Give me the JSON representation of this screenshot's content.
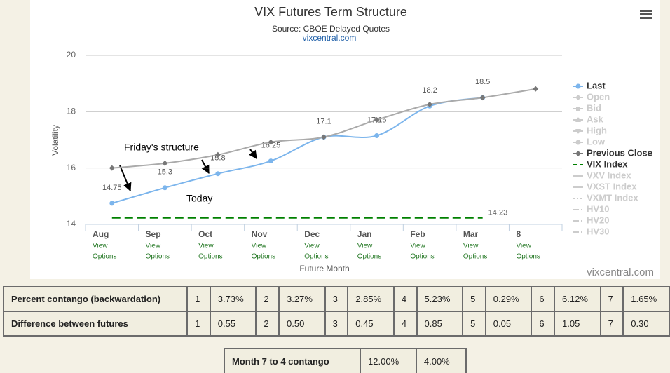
{
  "chart_data": {
    "type": "line",
    "title": "VIX Futures Term Structure",
    "subtitle": "Source: CBOE Delayed Quotes",
    "source_link": "vixcentral.com",
    "credits": "vixcentral.com",
    "y_label": "Volatility",
    "x_label": "Future Month",
    "categories": [
      "Aug",
      "Sep",
      "Oct",
      "Nov",
      "Dec",
      "Jan",
      "Feb",
      "Mar",
      "8"
    ],
    "category_link_text": [
      "View",
      "Options"
    ],
    "ylim": [
      14,
      20
    ],
    "yticks": [
      14,
      16,
      18,
      20
    ],
    "grid": true,
    "legend": "right",
    "annotations": [
      "Friday's structure",
      "Today"
    ],
    "series": [
      {
        "name": "Last",
        "color": "#7cb5ec",
        "marker": "circle",
        "data_labels": true,
        "values": [
          14.75,
          15.3,
          15.8,
          16.25,
          17.1,
          17.15,
          18.2,
          18.5,
          null
        ]
      },
      {
        "name": "Open",
        "hidden": true,
        "marker": "diamond"
      },
      {
        "name": "Bid",
        "hidden": true,
        "marker": "square"
      },
      {
        "name": "Ask",
        "hidden": true,
        "marker": "triangle"
      },
      {
        "name": "High",
        "hidden": true,
        "marker": "triangle-down"
      },
      {
        "name": "Low",
        "hidden": true,
        "marker": "circle"
      },
      {
        "name": "Previous Close",
        "color": "#999999",
        "marker": "diamond",
        "values": [
          16.0,
          16.17,
          16.47,
          16.92,
          17.1,
          17.71,
          18.26,
          18.5,
          18.81
        ]
      },
      {
        "name": "VIX Index",
        "color": "#008000",
        "dash": "dashed",
        "end_label": true,
        "values": [
          14.23,
          14.23,
          14.23,
          14.23,
          14.23,
          14.23,
          14.23,
          14.23,
          null
        ]
      },
      {
        "name": "VXV Index",
        "hidden": true,
        "dash": "solid"
      },
      {
        "name": "VXST Index",
        "hidden": true,
        "dash": "solid"
      },
      {
        "name": "VXMT Index",
        "hidden": true,
        "dash": "dotted"
      },
      {
        "name": "HV10",
        "hidden": true,
        "dash": "dashdot"
      },
      {
        "name": "HV20",
        "hidden": true,
        "dash": "dashdot"
      },
      {
        "name": "HV30",
        "hidden": true,
        "dash": "dashdot"
      }
    ]
  },
  "tables": [
    {
      "rows": [
        [
          "Percent contango (backwardation)",
          "1",
          "3.73%",
          "2",
          "3.27%",
          "3",
          "2.85%",
          "4",
          "5.23%",
          "5",
          "0.29%",
          "6",
          "6.12%",
          "7",
          "1.65%"
        ],
        [
          "Difference between futures",
          "1",
          "0.55",
          "2",
          "0.50",
          "3",
          "0.45",
          "4",
          "0.85",
          "5",
          "0.05",
          "6",
          "1.05",
          "7",
          "0.30"
        ]
      ]
    },
    {
      "rows": [
        [
          "Month 7 to 4 contango",
          "12.00%",
          "4.00%"
        ]
      ]
    }
  ]
}
